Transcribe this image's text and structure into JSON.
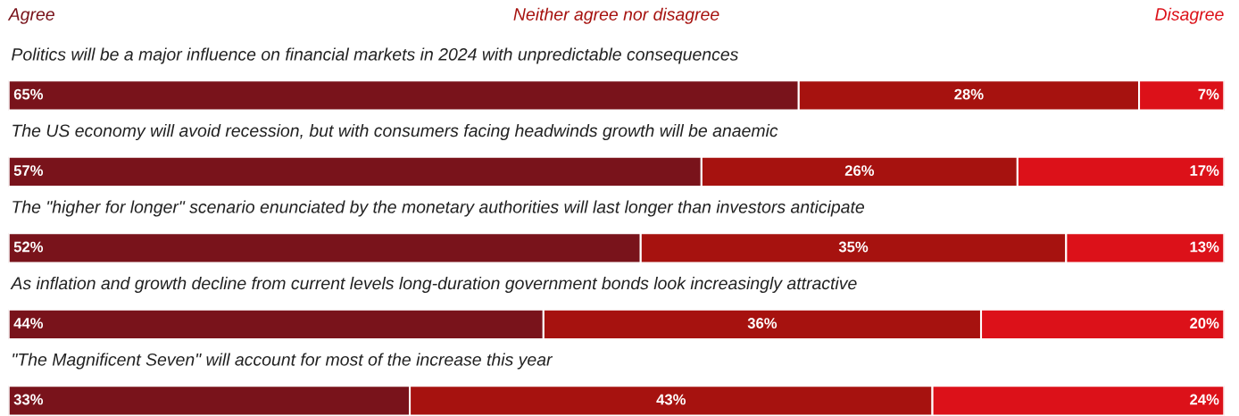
{
  "chart_data": {
    "type": "bar",
    "orientation": "horizontal",
    "stacked": true,
    "legend": "top",
    "categories": [
      "Politics will be a major influence on financial markets in 2024 with unpredictable consequences",
      "The US economy will avoid recession, but with consumers facing headwinds growth will be anaemic",
      "The \"higher for longer\" scenario enunciated by the monetary authorities will last longer than investors anticipate",
      "As inflation and growth decline from current levels long-duration government bonds look increasingly attractive",
      "\"The Magnificent Seven\" will account for most of the increase this year"
    ],
    "series": [
      {
        "name": "Agree",
        "color": "#79131b",
        "values": [
          65,
          57,
          52,
          44,
          33
        ],
        "value_labels": [
          "65%",
          "57%",
          "52%",
          "44%",
          "33%"
        ]
      },
      {
        "name": "Neither agree nor disagree",
        "color": "#a6120f",
        "values": [
          28,
          26,
          35,
          36,
          43
        ],
        "value_labels": [
          "28%",
          "26%",
          "35%",
          "36%",
          "43%"
        ]
      },
      {
        "name": "Disagree",
        "color": "#dc1119",
        "values": [
          7,
          17,
          13,
          20,
          24
        ],
        "value_labels": [
          "7%",
          "17%",
          "13%",
          "20%",
          "24%"
        ]
      }
    ]
  }
}
